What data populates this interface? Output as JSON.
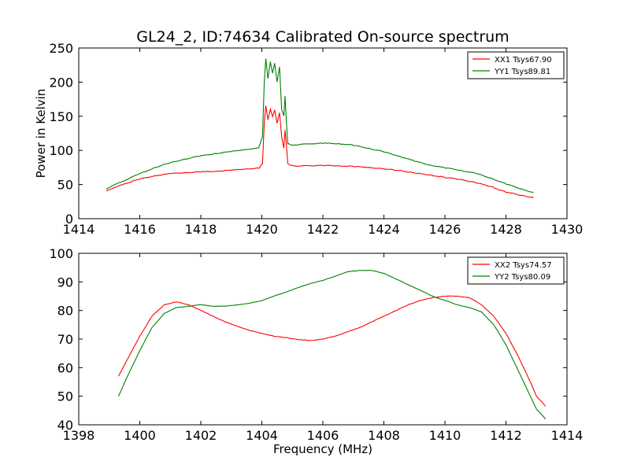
{
  "figure_title": "GL24_2, ID:74634 Calibrated On-source spectrum",
  "colors": {
    "xx": "#ff0000",
    "yy": "#008000",
    "frame": "#000000",
    "background": "#ffffff"
  },
  "chart_data": [
    {
      "type": "line",
      "title": "GL24_2, ID:74634 Calibrated On-source spectrum",
      "xlabel": "",
      "ylabel": "Power in Kelvin",
      "xlim": [
        1414,
        1430
      ],
      "ylim": [
        0,
        250
      ],
      "xticks": [
        "1414",
        "1416",
        "1418",
        "1420",
        "1422",
        "1424",
        "1426",
        "1428",
        "1430"
      ],
      "yticks": [
        "0",
        "50",
        "100",
        "150",
        "200",
        "250"
      ],
      "grid": false,
      "legend_position": "top-right",
      "series": [
        {
          "name": "XX1 Tsys67.90",
          "color": "#ff0000",
          "x": [
            1414.9,
            1415.2,
            1415.5,
            1416.0,
            1416.5,
            1417.0,
            1417.5,
            1418.0,
            1418.5,
            1419.0,
            1419.5,
            1419.9,
            1420.02,
            1420.08,
            1420.13,
            1420.2,
            1420.28,
            1420.35,
            1420.42,
            1420.5,
            1420.58,
            1420.65,
            1420.72,
            1420.76,
            1420.8,
            1420.85,
            1420.95,
            1421.2,
            1421.5,
            1422.0,
            1422.5,
            1423.0,
            1423.5,
            1424.0,
            1424.5,
            1425.0,
            1425.5,
            1426.0,
            1426.5,
            1427.0,
            1427.5,
            1428.0,
            1428.5,
            1428.9
          ],
          "y": [
            41,
            46,
            51,
            58,
            63,
            66,
            67.5,
            68.5,
            69.5,
            71,
            73,
            74,
            80,
            140,
            165,
            145,
            160,
            150,
            159,
            140,
            155,
            120,
            103,
            130,
            110,
            81,
            78,
            77,
            77.5,
            78,
            77.5,
            76.5,
            75,
            73,
            70.5,
            67,
            64,
            60.5,
            57.5,
            53,
            47,
            39,
            34,
            31
          ]
        },
        {
          "name": "YY1 Tsys89.81",
          "color": "#008000",
          "x": [
            1414.9,
            1415.2,
            1415.5,
            1416.0,
            1416.5,
            1417.0,
            1417.5,
            1418.0,
            1418.5,
            1419.0,
            1419.5,
            1419.9,
            1420.02,
            1420.08,
            1420.13,
            1420.2,
            1420.28,
            1420.35,
            1420.42,
            1420.5,
            1420.58,
            1420.65,
            1420.72,
            1420.76,
            1420.8,
            1420.85,
            1420.95,
            1421.2,
            1421.5,
            1422.0,
            1422.5,
            1423.0,
            1423.5,
            1424.0,
            1424.5,
            1425.0,
            1425.5,
            1426.0,
            1426.5,
            1427.0,
            1427.5,
            1428.0,
            1428.5,
            1428.9
          ],
          "y": [
            44,
            50,
            56,
            66,
            75,
            82,
            87.5,
            92,
            95.5,
            98.5,
            101.5,
            103.5,
            120,
            200,
            235,
            205,
            230,
            213,
            228,
            200,
            222,
            160,
            150,
            180,
            145,
            110,
            108,
            108.5,
            109.5,
            110.5,
            110,
            107.5,
            103,
            98,
            91.5,
            84.5,
            78.5,
            74.5,
            71,
            66.5,
            59.5,
            51,
            43.5,
            38
          ]
        }
      ]
    },
    {
      "type": "line",
      "title": "",
      "xlabel": "Frequency (MHz)",
      "ylabel": "",
      "xlim": [
        1398,
        1414
      ],
      "ylim": [
        40,
        100
      ],
      "xticks": [
        "1398",
        "1400",
        "1402",
        "1404",
        "1406",
        "1408",
        "1410",
        "1412",
        "1414"
      ],
      "yticks": [
        "40",
        "50",
        "60",
        "70",
        "80",
        "90",
        "100"
      ],
      "grid": false,
      "legend_position": "top-right",
      "series": [
        {
          "name": "XX2 Tsys74.57",
          "color": "#ff0000",
          "x": [
            1399.3,
            1399.6,
            1400.0,
            1400.4,
            1400.8,
            1401.2,
            1401.6,
            1402.0,
            1402.4,
            1402.8,
            1403.2,
            1403.6,
            1404.0,
            1404.4,
            1404.8,
            1405.2,
            1405.6,
            1406.0,
            1406.4,
            1406.8,
            1407.2,
            1407.6,
            1408.0,
            1408.4,
            1408.8,
            1409.2,
            1409.6,
            1410.0,
            1410.4,
            1410.8,
            1411.2,
            1411.6,
            1412.0,
            1412.4,
            1412.8,
            1413.0,
            1413.3
          ],
          "y": [
            57,
            63,
            71,
            78,
            82,
            83,
            82,
            80,
            78,
            76,
            74.5,
            73,
            72,
            71,
            70.5,
            69.8,
            69.5,
            70,
            71,
            72.5,
            74,
            76,
            78,
            80,
            82,
            83.5,
            84.5,
            85,
            85,
            84.5,
            82,
            78,
            72,
            64,
            55,
            50,
            46.5
          ]
        },
        {
          "name": "YY2 Tsys80.09",
          "color": "#008000",
          "x": [
            1399.3,
            1399.6,
            1400.0,
            1400.4,
            1400.8,
            1401.2,
            1401.6,
            1402.0,
            1402.4,
            1402.8,
            1403.2,
            1403.6,
            1404.0,
            1404.4,
            1404.8,
            1405.2,
            1405.6,
            1406.0,
            1406.4,
            1406.8,
            1407.2,
            1407.6,
            1408.0,
            1408.4,
            1408.8,
            1409.2,
            1409.6,
            1410.0,
            1410.4,
            1410.8,
            1411.2,
            1411.6,
            1412.0,
            1412.4,
            1412.8,
            1413.0,
            1413.3
          ],
          "y": [
            50,
            57,
            66,
            74,
            79,
            81,
            81.5,
            82,
            81.5,
            81.5,
            82,
            82.5,
            83.5,
            85,
            86.5,
            88,
            89.5,
            90.5,
            92,
            93.5,
            94,
            94,
            93,
            91,
            89,
            87,
            85,
            83.5,
            82,
            81,
            79.5,
            75,
            68,
            59,
            50,
            45.5,
            42
          ]
        }
      ]
    }
  ]
}
